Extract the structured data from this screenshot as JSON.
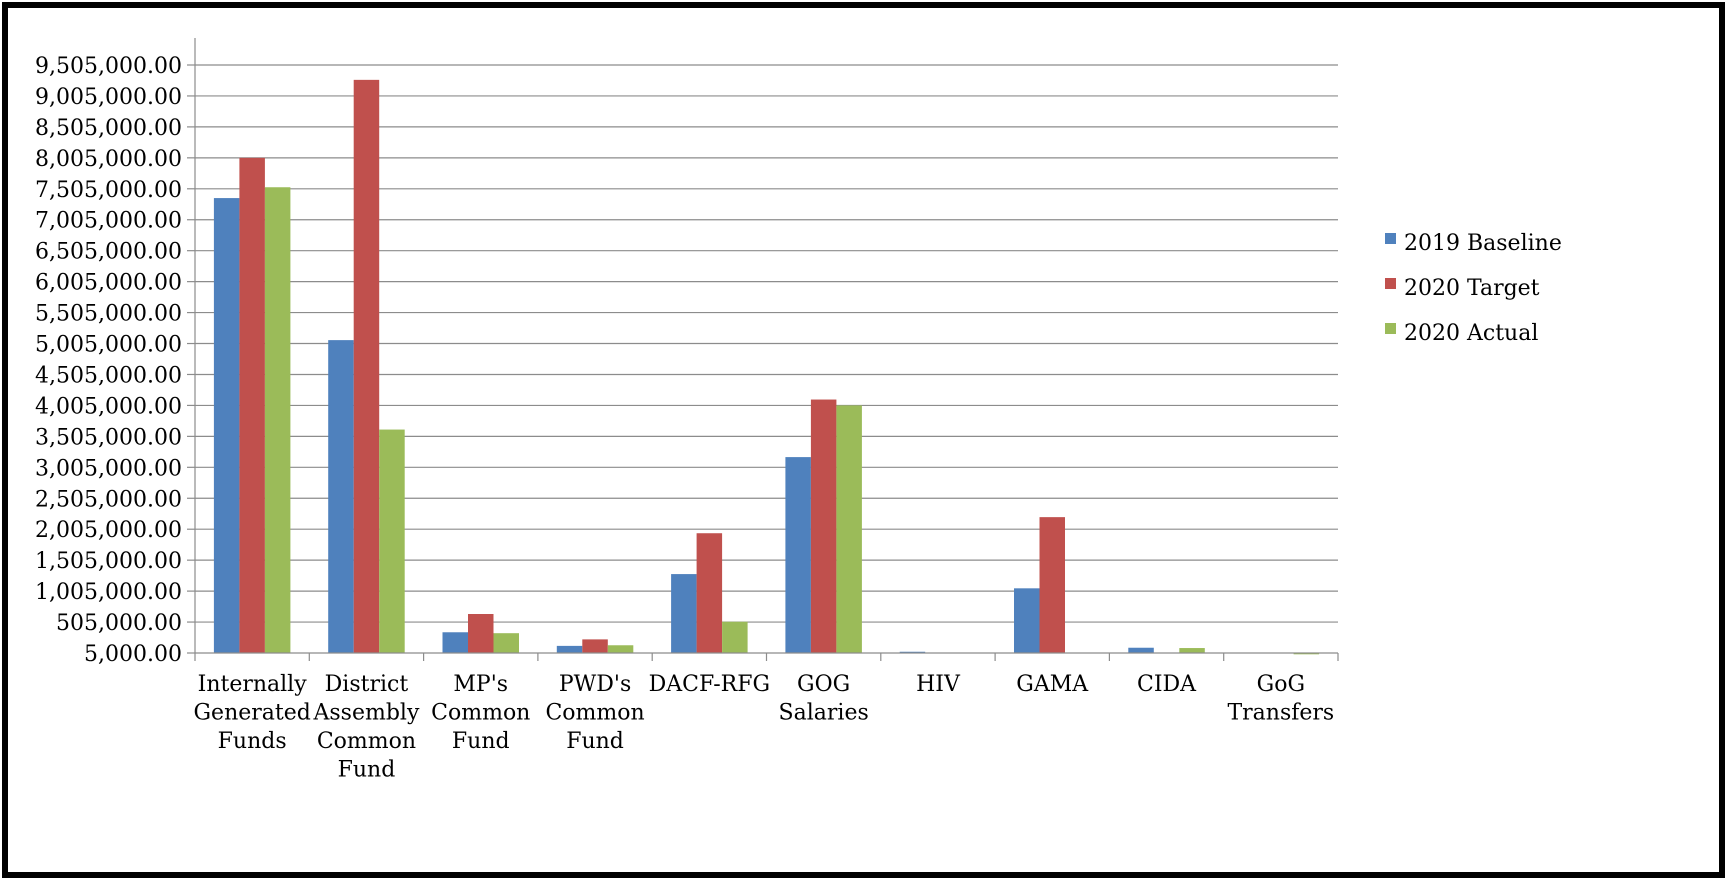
{
  "chart_data": {
    "type": "bar",
    "title": "",
    "xlabel": "",
    "ylabel": "",
    "ylim": [
      5000,
      9505000
    ],
    "yticks": [
      "9,505,000.00",
      "9,005,000.00",
      "8,505,000.00",
      "8,005,000.00",
      "7,505,000.00",
      "7,005,000.00",
      "6,505,000.00",
      "6,005,000.00",
      "5,505,000.00",
      "5,005,000.00",
      "4,505,000.00",
      "4,005,000.00",
      "3,505,000.00",
      "3,005,000.00",
      "2,505,000.00",
      "2,005,000.00",
      "1,505,000.00",
      "1,005,000.00",
      "505,000.00",
      "5,000.00"
    ],
    "ytick_values": [
      9505000,
      9005000,
      8505000,
      8005000,
      7505000,
      7005000,
      6505000,
      6005000,
      5505000,
      5005000,
      4505000,
      4005000,
      3505000,
      3005000,
      2505000,
      2005000,
      1505000,
      1005000,
      505000,
      5000
    ],
    "grid": true,
    "legend_position": "right",
    "categories": [
      [
        "Internally",
        "Generated",
        "Funds"
      ],
      [
        "District",
        "Assembly",
        "Common",
        "Fund"
      ],
      [
        "MP's",
        "Common",
        "Fund"
      ],
      [
        "PWD's",
        "Common",
        "Fund"
      ],
      [
        "DACF-RFG"
      ],
      [
        "GOG",
        "Salaries"
      ],
      [
        "HIV"
      ],
      [
        "GAMA"
      ],
      [
        "CIDA"
      ],
      [
        "GoG",
        "Transfers"
      ]
    ],
    "series": [
      {
        "name": "2019 Baseline",
        "color": "#4F81BD",
        "values": [
          7355000,
          5060000,
          340000,
          120000,
          1280000,
          3170000,
          25000,
          1050000,
          90000,
          0
        ]
      },
      {
        "name": "2020 Target",
        "color": "#C0504D",
        "values": [
          8005000,
          9265000,
          635000,
          225000,
          1940000,
          4100000,
          0,
          2200000,
          0,
          0
        ]
      },
      {
        "name": "2020 Actual",
        "color": "#9BBB59",
        "values": [
          7530000,
          3615000,
          325000,
          130000,
          510000,
          4005000,
          0,
          0,
          85000,
          8000
        ]
      }
    ]
  }
}
